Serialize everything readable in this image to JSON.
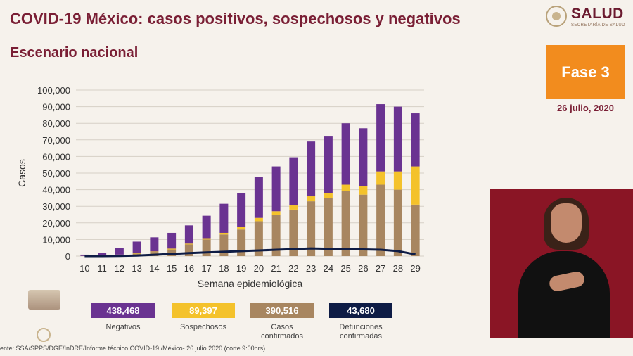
{
  "header": {
    "title": "COVID-19 México: casos positivos, sospechosos y negativos",
    "subtitle": "Escenario nacional"
  },
  "logo": {
    "word": "SALUD",
    "sub": "SECRETARÍA DE SALUD"
  },
  "phase": {
    "label": "Fase 3",
    "date": "26 julio, 2020"
  },
  "legend": [
    {
      "value": "438,468",
      "label": "Negativos",
      "color": "#6a3391"
    },
    {
      "value": "89,397",
      "label": "Sospechosos",
      "color": "#f4c22b"
    },
    {
      "value": "390,516",
      "label": "Casos confirmados",
      "color": "#a88660"
    },
    {
      "value": "43,680",
      "label": "Defunciones confirmadas",
      "color": "#0e1c45"
    }
  ],
  "footer": "ente: SSA/SPPS/DGE/InDRE/Informe técnico.COVID-19 /México- 26 julio 2020 (corte 9:00hrs)",
  "chart_data": {
    "type": "bar",
    "stacked": true,
    "xlabel": "Semana epidemiológica",
    "ylabel": "Casos",
    "ylim": [
      0,
      100000
    ],
    "yticks": [
      0,
      10000,
      20000,
      30000,
      40000,
      50000,
      60000,
      70000,
      80000,
      90000,
      100000
    ],
    "ytick_labels": [
      "0",
      "10,000",
      "20,000",
      "30,000",
      "40,000",
      "50,000",
      "60,000",
      "70,000",
      "80,000",
      "90,000",
      "100,000"
    ],
    "grid": true,
    "categories": [
      "10",
      "11",
      "12",
      "13",
      "14",
      "15",
      "16",
      "17",
      "18",
      "19",
      "20",
      "21",
      "22",
      "23",
      "24",
      "25",
      "26",
      "27",
      "28",
      "29"
    ],
    "series": [
      {
        "name": "Casos confirmados",
        "color": "#a88660",
        "values": [
          50,
          200,
          800,
          1500,
          2500,
          4000,
          7000,
          10000,
          13000,
          16000,
          21000,
          25000,
          28000,
          33000,
          35000,
          39000,
          37000,
          43000,
          40000,
          31000
        ]
      },
      {
        "name": "Sospechosos",
        "color": "#f4c22b",
        "values": [
          20,
          50,
          100,
          200,
          300,
          500,
          500,
          800,
          1000,
          1500,
          2000,
          2000,
          2500,
          3000,
          3000,
          4000,
          5000,
          8000,
          11000,
          23000
        ]
      },
      {
        "name": "Negativos",
        "color": "#6a3391",
        "values": [
          800,
          1500,
          3800,
          7000,
          8500,
          9500,
          11000,
          13500,
          17500,
          20500,
          24500,
          27000,
          29000,
          33000,
          34000,
          37000,
          35000,
          40500,
          39000,
          32000
        ]
      }
    ],
    "line": {
      "name": "Defunciones confirmadas",
      "color": "#0e1c45",
      "values": [
        0,
        20,
        100,
        300,
        800,
        1300,
        1800,
        2200,
        2600,
        3000,
        3400,
        3800,
        4200,
        4600,
        4400,
        4300,
        4000,
        3800,
        3000,
        1000
      ]
    }
  }
}
